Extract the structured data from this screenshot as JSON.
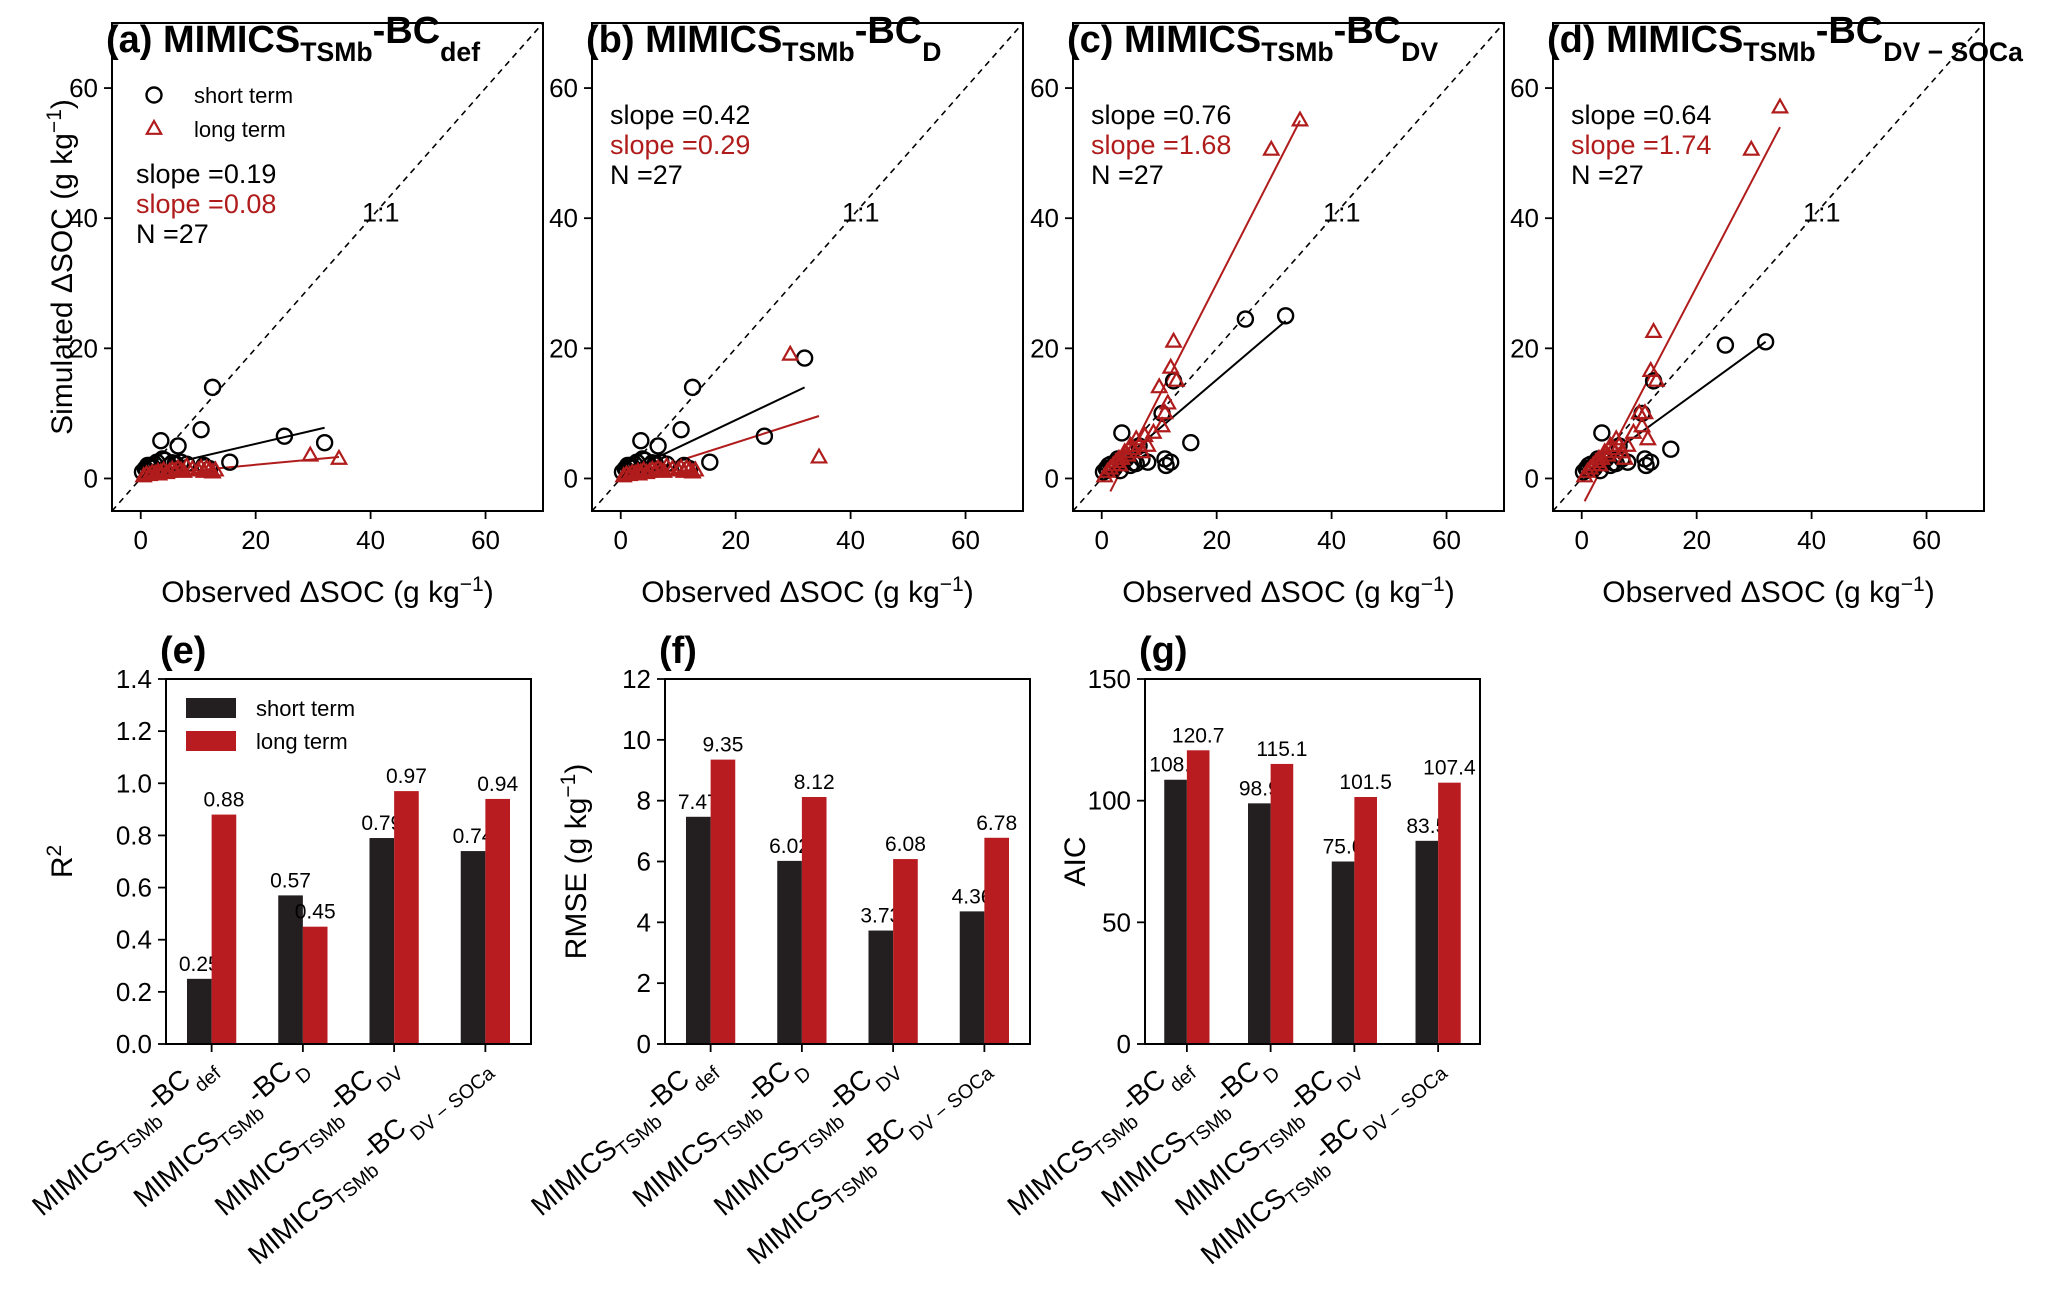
{
  "colors": {
    "short": "#000000",
    "long": "#b01c1c",
    "bar_short": "#231f20",
    "bar_long": "#b81c21"
  },
  "legend": {
    "short": "short term",
    "long": "long term"
  },
  "scatter": {
    "xlabel": "Observed ΔSOC (g kg",
    "ylabel": "Simulated ΔSOC (g kg",
    "unit_sup": "−1",
    "xticks": [
      "0",
      "20",
      "40",
      "60"
    ],
    "yticks": [
      "0",
      "20",
      "40",
      "60"
    ],
    "xlim": [
      -5,
      70
    ],
    "ylim": [
      -5,
      70
    ],
    "ref_label": "1:1",
    "n_label": "N =27"
  },
  "chart_data": [
    {
      "type": "scatter",
      "panel": "(a)",
      "title_main": "MIMICS",
      "title_sub1": "TSMb",
      "title_mid": "-BC",
      "title_sub2": "def",
      "slope_short": "slope =0.19",
      "slope_long": "slope =0.08",
      "short": {
        "x": [
          0.3,
          0.8,
          1.2,
          1.6,
          2.0,
          2.4,
          2.8,
          3.5,
          4.2,
          5.0,
          6.5,
          7.0,
          10.5,
          11.2,
          12.5,
          15.5,
          25.0,
          32.0,
          3.2,
          1.0,
          2.2,
          5.5,
          8.0,
          3.8,
          6.0,
          11.0,
          12.0
        ],
        "y": [
          1.0,
          1.5,
          2.0,
          2.0,
          1.8,
          2.2,
          2.5,
          5.8,
          2.8,
          2.0,
          5.0,
          2.5,
          7.5,
          1.8,
          14.0,
          2.5,
          6.5,
          5.5,
          1.2,
          1.3,
          1.6,
          2.4,
          2.2,
          3.0,
          2.3,
          2.0,
          1.5
        ]
      },
      "long": {
        "x": [
          0.5,
          1.0,
          1.5,
          2.0,
          2.5,
          3.0,
          3.5,
          4.0,
          4.5,
          5.0,
          5.5,
          6.0,
          6.5,
          7.0,
          7.5,
          8.0,
          9.0,
          10.0,
          10.5,
          11.0,
          11.5,
          12.0,
          12.5,
          13.0,
          29.5,
          34.5,
          3.2
        ],
        "y": [
          0.3,
          0.6,
          0.5,
          0.8,
          0.7,
          1.0,
          0.9,
          1.2,
          0.8,
          1.0,
          1.3,
          1.1,
          1.5,
          1.2,
          1.0,
          1.8,
          1.4,
          1.2,
          1.6,
          1.0,
          1.5,
          1.3,
          0.9,
          1.2,
          3.5,
          3.0,
          0.6
        ]
      },
      "fit_short": [
        [
          0.5,
          1.3
        ],
        [
          32,
          7.8
        ]
      ],
      "fit_long": [
        [
          0.5,
          0.5
        ],
        [
          34.5,
          3.3
        ]
      ]
    },
    {
      "type": "scatter",
      "panel": "(b)",
      "title_main": "MIMICS",
      "title_sub1": "TSMb",
      "title_mid": "-BC",
      "title_sub2": "D",
      "slope_short": "slope =0.42",
      "slope_long": "slope =0.29",
      "short": {
        "x": [
          0.3,
          0.8,
          1.2,
          1.6,
          2.0,
          2.4,
          2.8,
          3.5,
          4.2,
          5.0,
          6.5,
          7.0,
          10.5,
          11.2,
          12.5,
          15.5,
          25.0,
          32.0,
          3.2,
          1.0,
          2.2,
          5.5,
          8.0,
          3.8,
          6.0,
          11.0,
          12.0
        ],
        "y": [
          1.0,
          1.5,
          2.0,
          2.0,
          1.8,
          2.2,
          2.5,
          5.8,
          2.8,
          2.0,
          5.0,
          2.5,
          7.5,
          1.8,
          14.0,
          2.5,
          6.5,
          18.5,
          1.2,
          1.3,
          1.6,
          2.4,
          2.2,
          3.0,
          2.3,
          2.0,
          1.5
        ]
      },
      "long": {
        "x": [
          0.5,
          1.0,
          1.5,
          2.0,
          2.5,
          3.0,
          3.5,
          4.0,
          4.5,
          5.0,
          5.5,
          6.0,
          6.5,
          7.0,
          7.5,
          8.0,
          9.0,
          10.0,
          10.5,
          11.0,
          11.5,
          12.0,
          12.5,
          13.0,
          29.5,
          34.5,
          3.2
        ],
        "y": [
          0.3,
          0.6,
          0.5,
          0.8,
          0.7,
          1.0,
          0.9,
          1.2,
          0.8,
          1.0,
          1.3,
          1.1,
          1.5,
          1.2,
          1.0,
          1.8,
          1.4,
          1.2,
          1.6,
          1.0,
          1.5,
          1.3,
          0.9,
          1.2,
          19.0,
          3.2,
          0.6
        ]
      },
      "fit_short": [
        [
          0.5,
          0.8
        ],
        [
          32,
          14.0
        ]
      ],
      "fit_long": [
        [
          0.5,
          0.0
        ],
        [
          34.5,
          9.6
        ]
      ]
    },
    {
      "type": "scatter",
      "panel": "(c)",
      "title_main": "MIMICS",
      "title_sub1": "TSMb",
      "title_mid": "-BC",
      "title_sub2": "DV",
      "slope_short": "slope =0.76",
      "slope_long": "slope =1.68",
      "short": {
        "x": [
          0.3,
          0.8,
          1.2,
          1.6,
          2.0,
          2.4,
          2.8,
          3.5,
          4.2,
          5.0,
          6.5,
          7.0,
          10.5,
          11.2,
          12.5,
          15.5,
          25.0,
          32.0,
          3.2,
          1.0,
          2.2,
          5.5,
          8.0,
          3.8,
          6.0,
          11.0,
          12.0
        ],
        "y": [
          1.0,
          1.5,
          2.0,
          2.2,
          1.8,
          2.5,
          3.0,
          7.0,
          3.0,
          2.0,
          5.0,
          3.0,
          10.0,
          2.0,
          15.0,
          5.5,
          24.5,
          25.0,
          1.2,
          1.3,
          1.6,
          2.4,
          2.5,
          3.0,
          2.3,
          3.0,
          2.5
        ]
      },
      "long": {
        "x": [
          0.5,
          1.0,
          1.5,
          2.0,
          2.5,
          3.0,
          3.5,
          4.0,
          4.5,
          5.0,
          5.5,
          6.0,
          6.5,
          7.0,
          7.5,
          8.0,
          9.0,
          10.0,
          10.5,
          11.0,
          11.5,
          12.0,
          12.5,
          13.0,
          29.5,
          34.5,
          3.2
        ],
        "y": [
          0.3,
          1.0,
          1.5,
          2.0,
          2.5,
          3.0,
          3.0,
          4.0,
          3.5,
          5.0,
          4.5,
          6.0,
          5.0,
          4.0,
          6.5,
          5.0,
          7.0,
          14.0,
          8.0,
          10.0,
          11.5,
          17.0,
          21.0,
          15.0,
          50.5,
          55.0,
          2.0
        ]
      },
      "fit_short": [
        [
          0.5,
          0.5
        ],
        [
          32,
          24.2
        ]
      ],
      "fit_long": [
        [
          1.5,
          -2.0
        ],
        [
          34.5,
          55.0
        ]
      ]
    },
    {
      "type": "scatter",
      "panel": "(d)",
      "title_main": "MIMICS",
      "title_sub1": "TSMb",
      "title_mid": "-BC",
      "title_sub2": "DV − SOCa",
      "slope_short": "slope =0.64",
      "slope_long": "slope =1.74",
      "short": {
        "x": [
          0.3,
          0.8,
          1.2,
          1.6,
          2.0,
          2.4,
          2.8,
          3.5,
          4.2,
          5.0,
          6.5,
          7.0,
          10.5,
          11.2,
          12.5,
          15.5,
          25.0,
          32.0,
          3.2,
          1.0,
          2.2,
          5.5,
          8.0,
          3.8,
          6.0,
          11.0,
          12.0
        ],
        "y": [
          1.0,
          1.5,
          2.0,
          2.2,
          1.8,
          2.5,
          3.0,
          7.0,
          3.0,
          2.0,
          5.0,
          3.0,
          10.0,
          2.0,
          15.0,
          4.5,
          20.5,
          21.0,
          1.2,
          1.3,
          1.6,
          2.4,
          2.5,
          3.0,
          2.3,
          3.0,
          2.5
        ]
      },
      "long": {
        "x": [
          0.5,
          1.0,
          1.5,
          2.0,
          2.5,
          3.0,
          3.5,
          4.0,
          4.5,
          5.0,
          5.5,
          6.0,
          6.5,
          7.0,
          7.5,
          8.0,
          9.0,
          10.0,
          10.5,
          11.0,
          11.5,
          12.0,
          12.5,
          13.0,
          29.5,
          34.5,
          3.2
        ],
        "y": [
          0.3,
          1.0,
          1.5,
          2.0,
          2.5,
          3.0,
          3.0,
          4.0,
          3.5,
          5.0,
          4.5,
          6.0,
          5.0,
          4.0,
          3.0,
          5.0,
          7.0,
          10.0,
          8.0,
          10.0,
          6.0,
          16.5,
          22.5,
          15.0,
          50.5,
          57.0,
          2.0
        ]
      },
      "fit_short": [
        [
          0.5,
          0.8
        ],
        [
          32,
          21.0
        ]
      ],
      "fit_long": [
        [
          0.5,
          -3.5
        ],
        [
          34.5,
          54.0
        ]
      ]
    },
    {
      "type": "bar",
      "panel": "(e)",
      "ylabel_main": "R",
      "ylabel_sup": "2",
      "yticks": [
        "0.0",
        "0.2",
        "0.4",
        "0.6",
        "0.8",
        "1.0",
        "1.2",
        "1.4"
      ],
      "ylim": [
        0,
        1.4
      ],
      "categories": [
        {
          "main": "MIMICS",
          "sub1": "TSMb",
          "mid": "-BC",
          "sub2": "def"
        },
        {
          "main": "MIMICS",
          "sub1": "TSMb",
          "mid": "-BC",
          "sub2": "D"
        },
        {
          "main": "MIMICS",
          "sub1": "TSMb",
          "mid": "-BC",
          "sub2": "DV"
        },
        {
          "main": "MIMICS",
          "sub1": "TSMb",
          "mid": "-BC",
          "sub2": "DV − SOCa"
        }
      ],
      "series": [
        {
          "name": "short term",
          "values": [
            0.25,
            0.57,
            0.79,
            0.74
          ],
          "labels": [
            "0.25",
            "0.57",
            "0.79",
            "0.74"
          ]
        },
        {
          "name": "long term",
          "values": [
            0.88,
            0.45,
            0.97,
            0.94
          ],
          "labels": [
            "0.88",
            "0.45",
            "0.97",
            "0.94"
          ]
        }
      ]
    },
    {
      "type": "bar",
      "panel": "(f)",
      "ylabel_main": "RMSE (g kg",
      "ylabel_sup": "−1",
      "yticks": [
        "0",
        "2",
        "4",
        "6",
        "8",
        "10",
        "12"
      ],
      "ylim": [
        0,
        12
      ],
      "categories": [
        {
          "main": "MIMICS",
          "sub1": "TSMb",
          "mid": "-BC",
          "sub2": "def"
        },
        {
          "main": "MIMICS",
          "sub1": "TSMb",
          "mid": "-BC",
          "sub2": "D"
        },
        {
          "main": "MIMICS",
          "sub1": "TSMb",
          "mid": "-BC",
          "sub2": "DV"
        },
        {
          "main": "MIMICS",
          "sub1": "TSMb",
          "mid": "-BC",
          "sub2": "DV − SOCa"
        }
      ],
      "series": [
        {
          "name": "short term",
          "values": [
            7.47,
            6.02,
            3.73,
            4.36
          ],
          "labels": [
            "7.47",
            "6.02",
            "3.73",
            "4.36"
          ]
        },
        {
          "name": "long term",
          "values": [
            9.35,
            8.12,
            6.08,
            6.78
          ],
          "labels": [
            "9.35",
            "8.12",
            "6.08",
            "6.78"
          ]
        }
      ]
    },
    {
      "type": "bar",
      "panel": "(g)",
      "ylabel_main": "AIC",
      "ylabel_sup": "",
      "yticks": [
        "0",
        "50",
        "100",
        "150"
      ],
      "ylim": [
        0,
        150
      ],
      "categories": [
        {
          "main": "MIMICS",
          "sub1": "TSMb",
          "mid": "-BC",
          "sub2": "def"
        },
        {
          "main": "MIMICS",
          "sub1": "TSMb",
          "mid": "-BC",
          "sub2": "D"
        },
        {
          "main": "MIMICS",
          "sub1": "TSMb",
          "mid": "-BC",
          "sub2": "DV"
        },
        {
          "main": "MIMICS",
          "sub1": "TSMb",
          "mid": "-BC",
          "sub2": "DV − SOCa"
        }
      ],
      "series": [
        {
          "name": "short term",
          "values": [
            108.6,
            98.9,
            75.0,
            83.5
          ],
          "labels": [
            "108.6",
            "98.9",
            "75.0",
            "83.5"
          ]
        },
        {
          "name": "long term",
          "values": [
            120.7,
            115.1,
            101.5,
            107.4
          ],
          "labels": [
            "120.7",
            "115.1",
            "101.5",
            "107.4"
          ]
        }
      ]
    }
  ]
}
